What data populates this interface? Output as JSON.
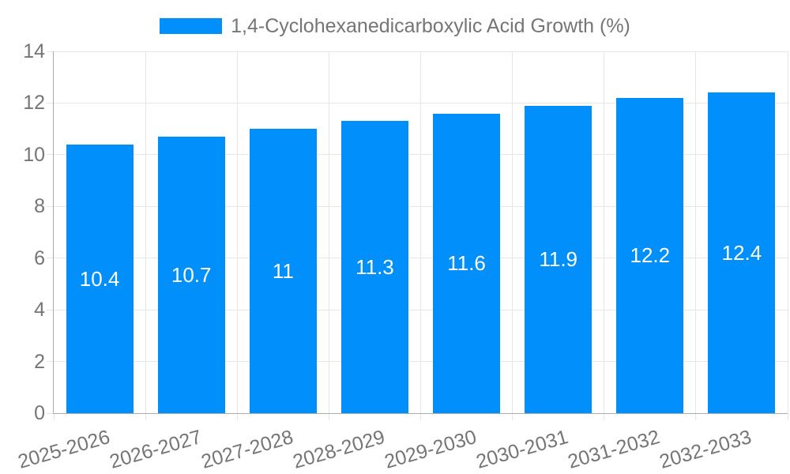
{
  "chart_data": {
    "type": "bar",
    "title": "1,4-Cyclohexanedicarboxylic Acid Growth (%)",
    "legend": {
      "position": "top",
      "entries": [
        {
          "label": "1,4-Cyclohexanedicarboxylic Acid Growth (%)",
          "color": "#008ffb"
        }
      ]
    },
    "categories": [
      "2025-2026",
      "2026-2027",
      "2027-2028",
      "2028-2029",
      "2029-2030",
      "2030-2031",
      "2031-2032",
      "2032-2033"
    ],
    "series": [
      {
        "name": "1,4-Cyclohexanedicarboxylic Acid Growth (%)",
        "values": [
          10.4,
          10.7,
          11,
          11.3,
          11.6,
          11.9,
          12.2,
          12.4
        ],
        "value_labels": [
          "10.4",
          "10.7",
          "11",
          "11.3",
          "11.6",
          "11.9",
          "12.2",
          "12.4"
        ]
      }
    ],
    "xlabel": "",
    "ylabel": "",
    "ylim": [
      0,
      14
    ],
    "yticks": [
      0,
      2,
      4,
      6,
      8,
      10,
      12,
      14
    ],
    "grid": true,
    "x_label_rotation_deg": -16
  },
  "colors": {
    "bar": "#008ffb",
    "bar_value_label": "#ffffff",
    "axis_text": "#757575",
    "legend_text": "#757575",
    "grid_line": "#e6e6e6",
    "axis_line": "#ababab",
    "background": "#ffffff"
  }
}
